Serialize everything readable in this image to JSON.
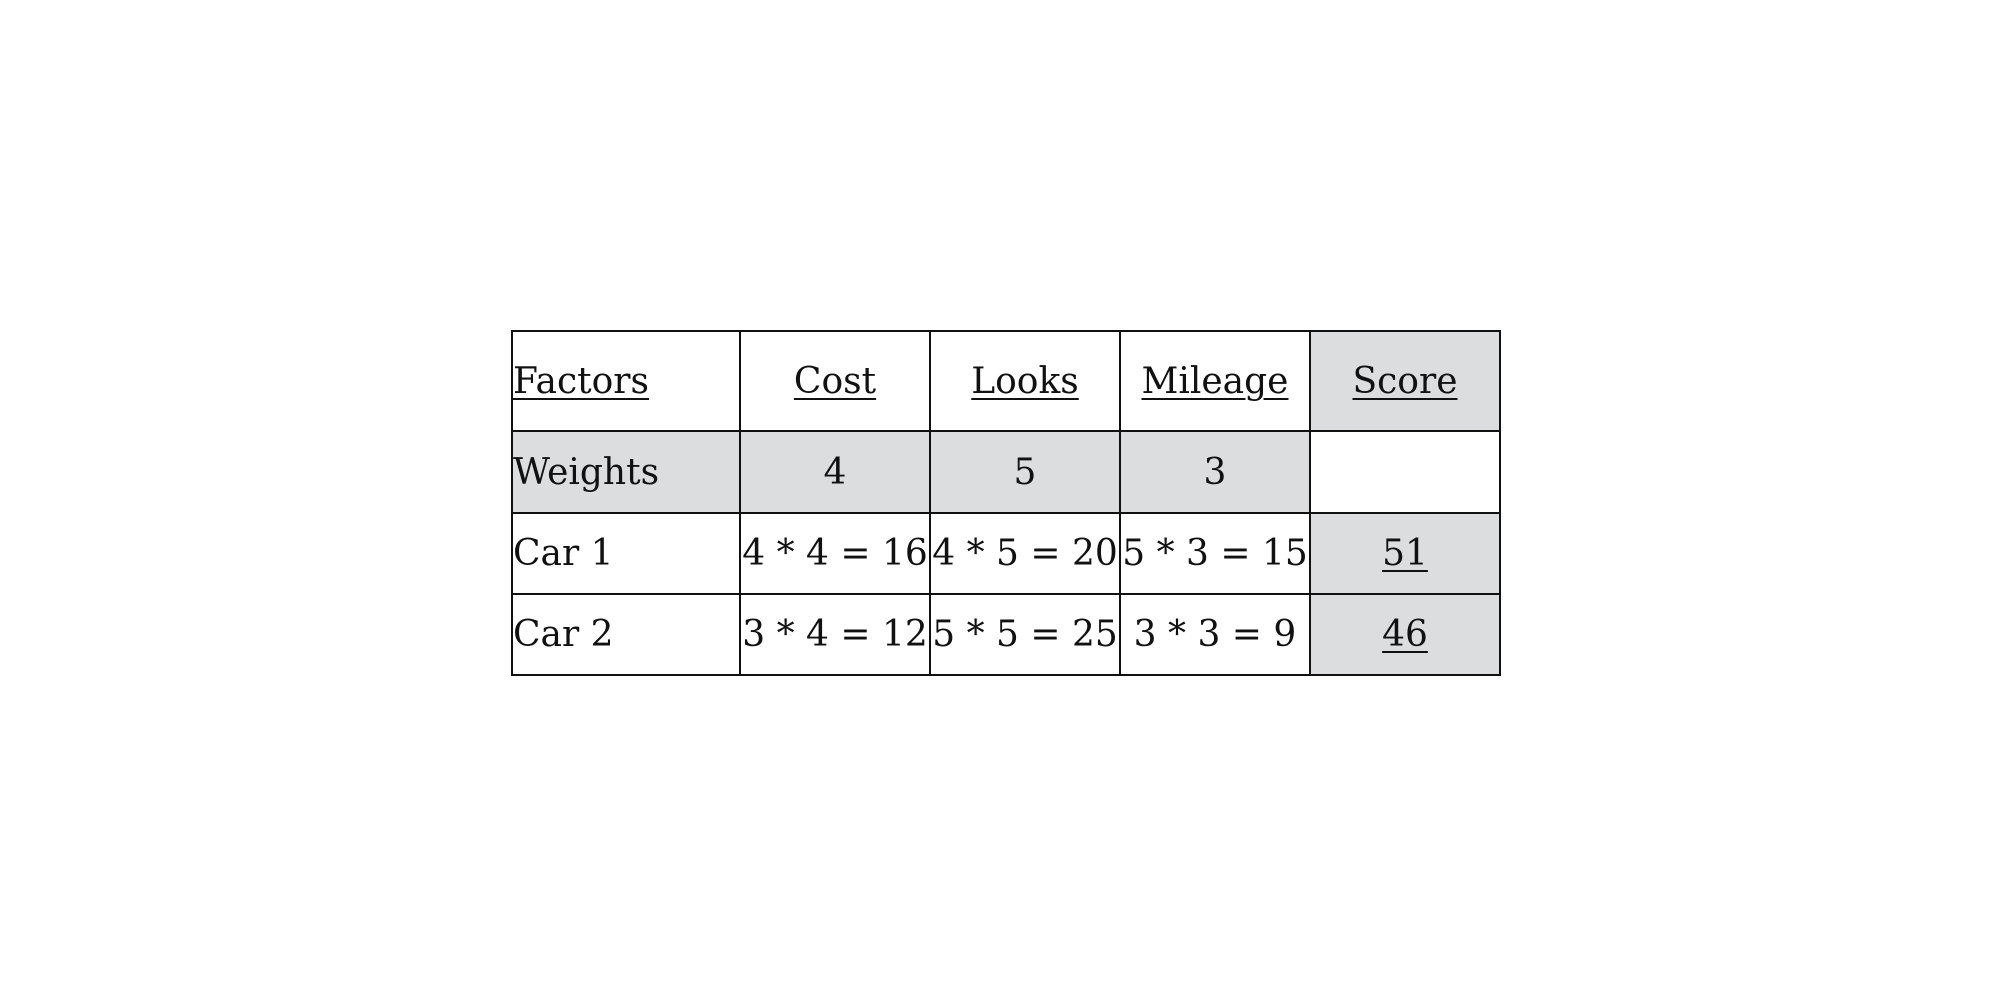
{
  "table": {
    "header": [
      "Factors",
      "Cost",
      "Looks",
      "Mileage",
      "Score"
    ],
    "weights": {
      "label": "Weights",
      "values": [
        "4",
        "5",
        "3"
      ],
      "score": ""
    },
    "rows": [
      {
        "label": "Car 1",
        "cells": [
          "4 * 4 = 16",
          "4 * 5 = 20",
          "5 * 3 = 15"
        ],
        "score": "51"
      },
      {
        "label": "Car 2",
        "cells": [
          "3 * 4 = 12",
          "5 * 5 = 25",
          "3 * 3 = 9"
        ],
        "score": "46"
      }
    ],
    "colors": {
      "shade": "#dcdddf",
      "border": "#111111"
    }
  }
}
